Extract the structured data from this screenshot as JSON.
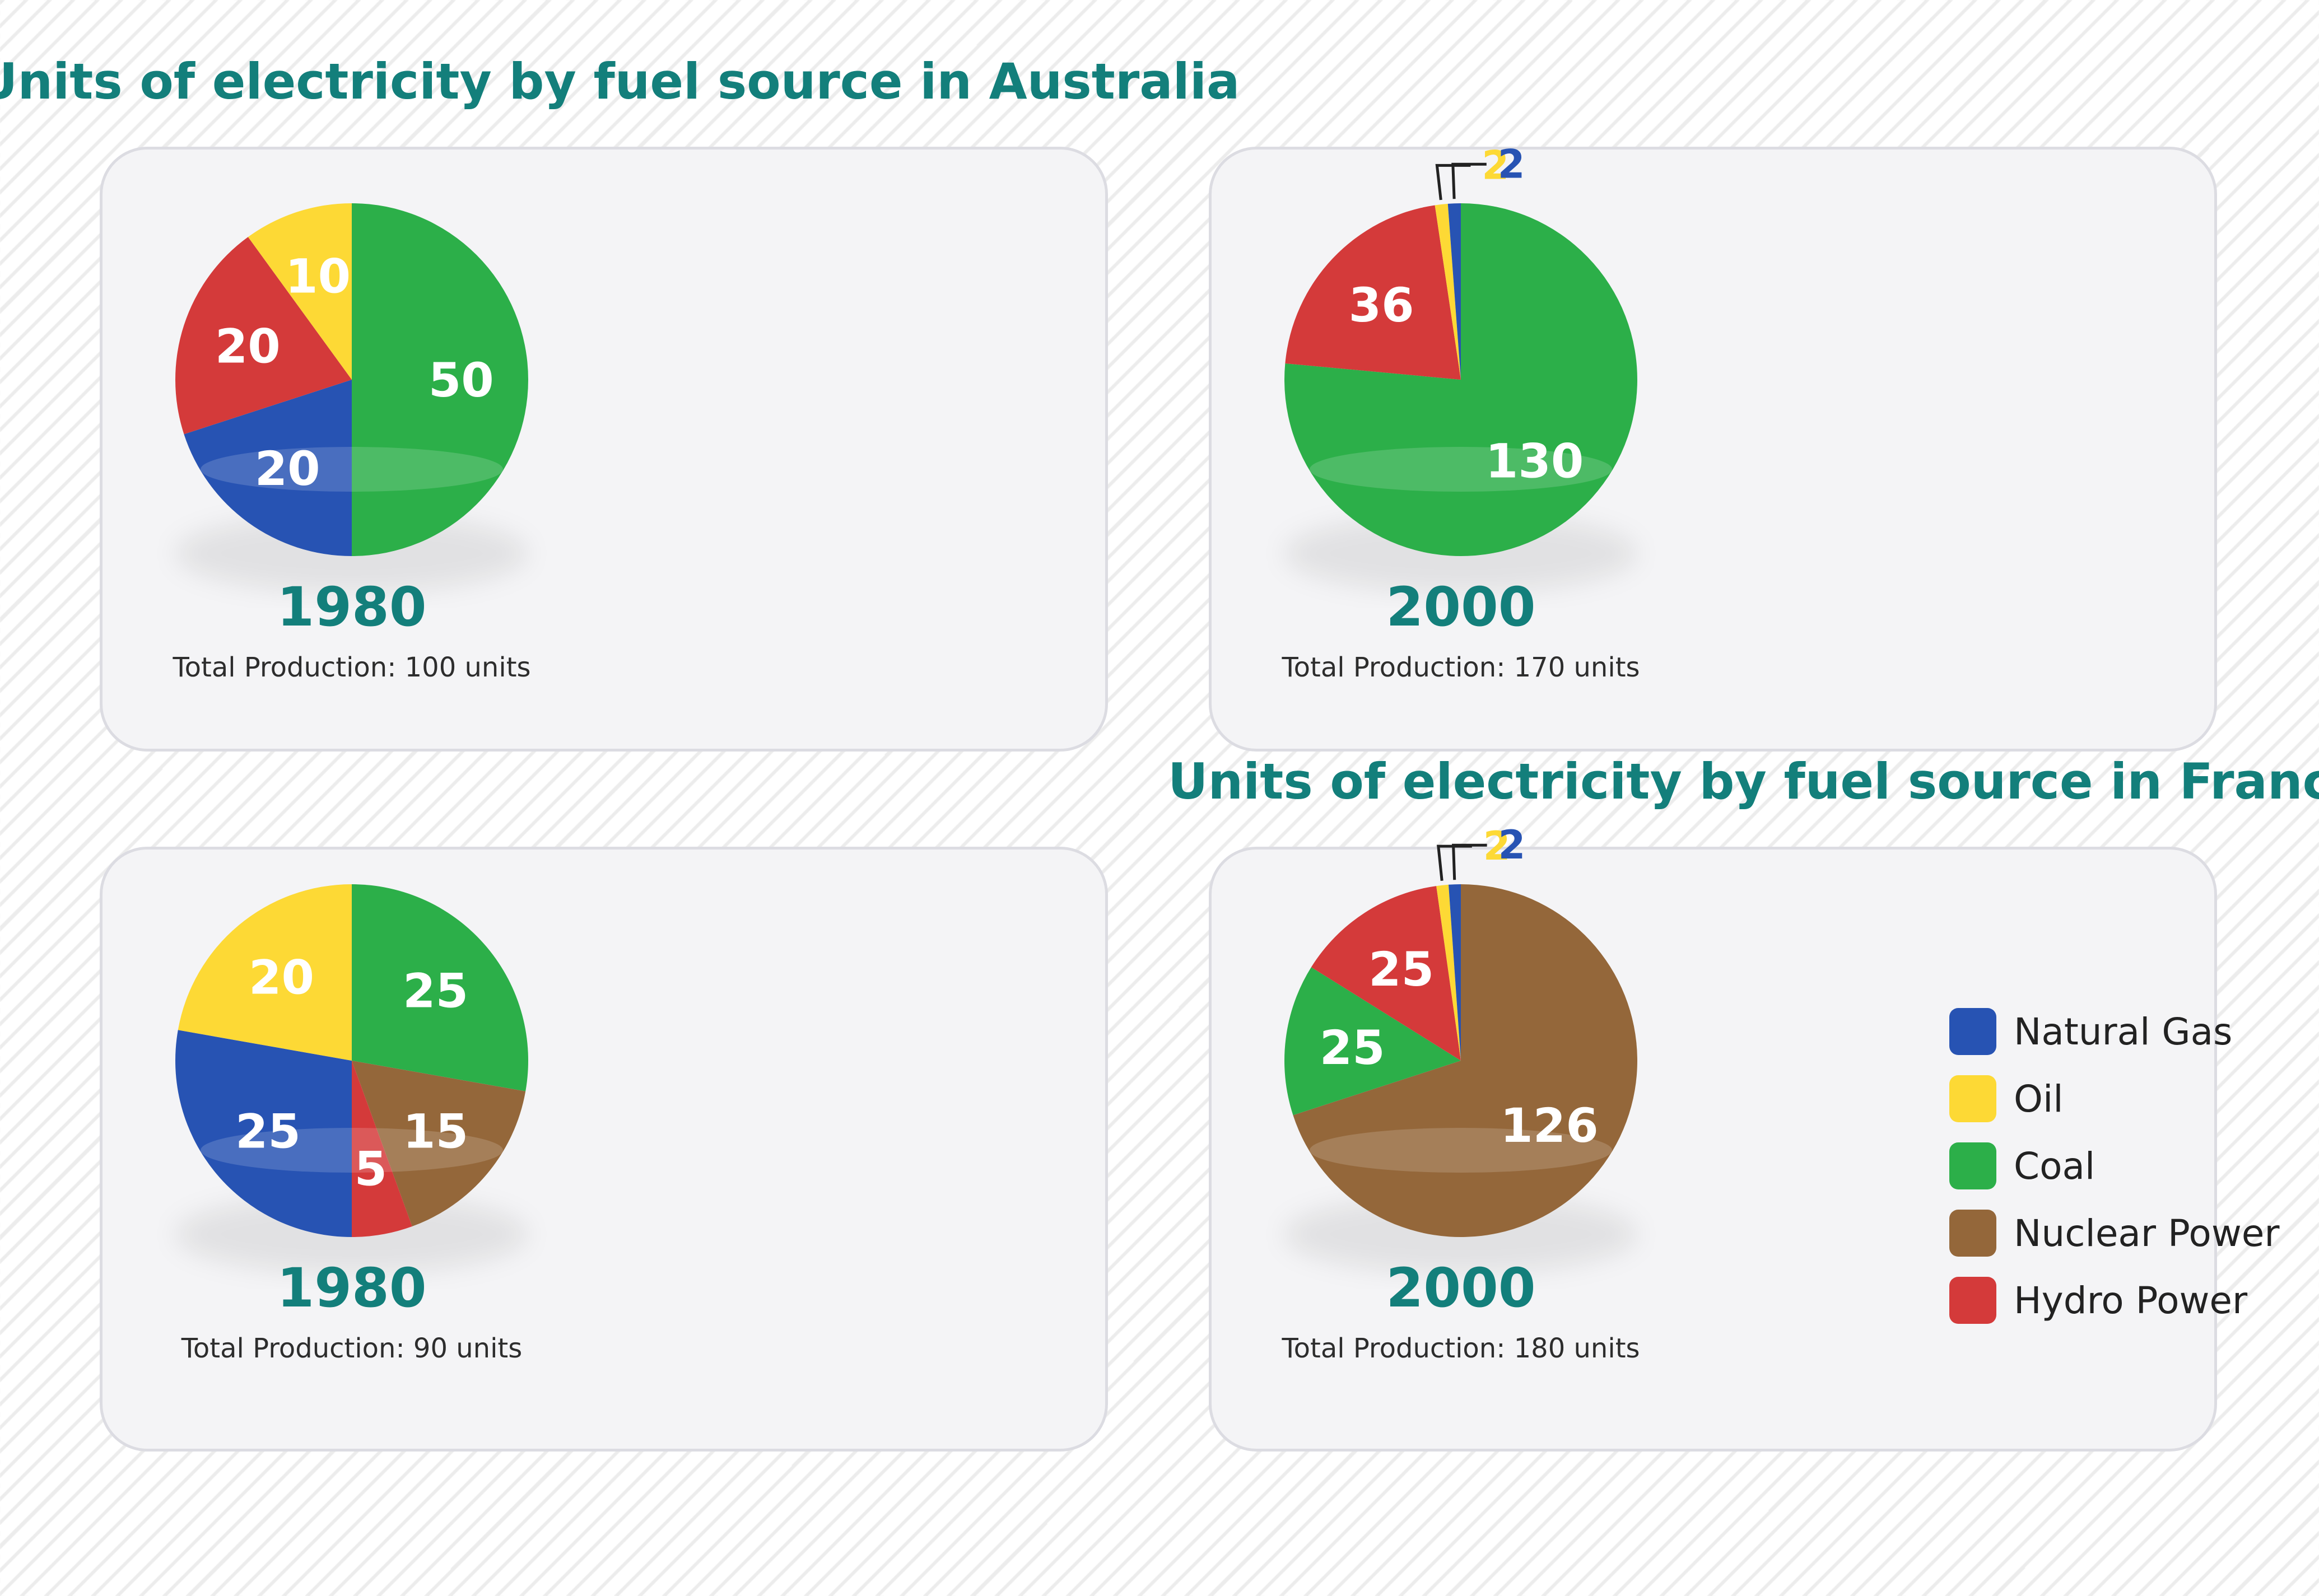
{
  "titles": {
    "australia": "Units of electricity by fuel source in Australia",
    "france": "Units of electricity by fuel source in France"
  },
  "colors": {
    "natural_gas": "#2753b3",
    "oil": "#fdd935",
    "coal": "#2caf49",
    "nuclear": "#94673a",
    "hydro": "#d43a3a",
    "accent": "#137f7b"
  },
  "legend": [
    {
      "label": "Natural Gas",
      "color": "#2753b3"
    },
    {
      "label": "Oil",
      "color": "#fdd935"
    },
    {
      "label": "Coal",
      "color": "#2caf49"
    },
    {
      "label": "Nuclear Power",
      "color": "#94673a"
    },
    {
      "label": "Hydro Power",
      "color": "#d43a3a"
    }
  ],
  "chart_data": [
    {
      "type": "pie",
      "title": "Units of electricity by fuel source in Australia",
      "year": "1980",
      "total_label": "Total Production: 100 units",
      "slices": [
        {
          "label": "Coal",
          "value": 50,
          "color": "#2caf49",
          "value_label": "50"
        },
        {
          "label": "Natural Gas",
          "value": 20,
          "color": "#2753b3",
          "value_label": "20"
        },
        {
          "label": "Hydro Power",
          "value": 20,
          "color": "#d43a3a",
          "value_label": "20"
        },
        {
          "label": "Oil",
          "value": 10,
          "color": "#fdd935",
          "value_label": "10"
        }
      ]
    },
    {
      "type": "pie",
      "title": "Units of electricity by fuel source in Australia",
      "year": "2000",
      "total_label": "Total Production: 170 units",
      "slices": [
        {
          "label": "Coal",
          "value": 130,
          "color": "#2caf49",
          "value_label": "130"
        },
        {
          "label": "Hydro Power",
          "value": 36,
          "color": "#d43a3a",
          "value_label": "36"
        },
        {
          "label": "Oil",
          "value": 2,
          "color": "#fdd935",
          "value_label": "2"
        },
        {
          "label": "Natural Gas",
          "value": 2,
          "color": "#2753b3",
          "value_label": "2"
        }
      ]
    },
    {
      "type": "pie",
      "title": "Units of electricity by fuel source in France",
      "year": "1980",
      "total_label": "Total Production: 90 units",
      "slices": [
        {
          "label": "Coal",
          "value": 25,
          "color": "#2caf49",
          "value_label": "25"
        },
        {
          "label": "Nuclear Power",
          "value": 15,
          "color": "#94673a",
          "value_label": "15"
        },
        {
          "label": "Hydro Power",
          "value": 5,
          "color": "#d43a3a",
          "value_label": "5"
        },
        {
          "label": "Natural Gas",
          "value": 25,
          "color": "#2753b3",
          "value_label": "25"
        },
        {
          "label": "Oil",
          "value": 20,
          "color": "#fdd935",
          "value_label": "20"
        }
      ]
    },
    {
      "type": "pie",
      "title": "Units of electricity by fuel source in France",
      "year": "2000",
      "total_label": "Total Production: 180 units",
      "slices": [
        {
          "label": "Nuclear Power",
          "value": 126,
          "color": "#94673a",
          "value_label": "126"
        },
        {
          "label": "Coal",
          "value": 25,
          "color": "#2caf49",
          "value_label": "25"
        },
        {
          "label": "Hydro Power",
          "value": 25,
          "color": "#d43a3a",
          "value_label": "25"
        },
        {
          "label": "Oil",
          "value": 2,
          "color": "#fdd935",
          "value_label": "2"
        },
        {
          "label": "Natural Gas",
          "value": 2,
          "color": "#2753b3",
          "value_label": "2"
        }
      ]
    }
  ]
}
